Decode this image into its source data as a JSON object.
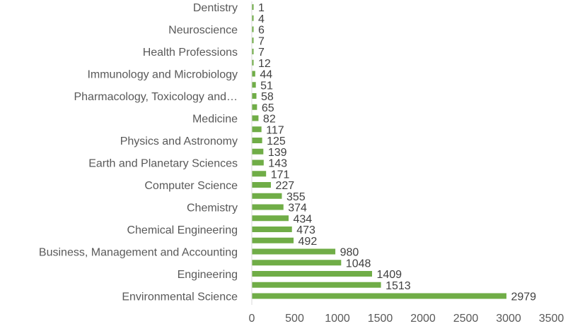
{
  "chart_data": {
    "type": "bar",
    "orientation": "horizontal",
    "title": "",
    "xlabel": "",
    "ylabel": "",
    "xlim": [
      0,
      3500
    ],
    "x_ticks": [
      0,
      500,
      1000,
      1500,
      2000,
      2500,
      3000,
      3500
    ],
    "grid": false,
    "legend": "none",
    "bar_color": "#70AD47",
    "categories": [
      "Environmental Science",
      "",
      "Engineering",
      "",
      "Business, Management and Accounting",
      "",
      "Chemical Engineering",
      "",
      "Chemistry",
      "",
      "Computer Science",
      "",
      "Earth and Planetary Sciences",
      "",
      "Physics and Astronomy",
      "",
      "Medicine",
      "",
      "Pharmacology, Toxicology and…",
      "",
      "Immunology and Microbiology",
      "",
      "Health Professions",
      "",
      "Neuroscience",
      "",
      "Dentistry"
    ],
    "values": [
      2979,
      1513,
      1409,
      1048,
      980,
      492,
      473,
      434,
      374,
      355,
      227,
      171,
      143,
      139,
      125,
      117,
      82,
      65,
      58,
      51,
      44,
      12,
      7,
      7,
      6,
      4,
      1
    ]
  }
}
